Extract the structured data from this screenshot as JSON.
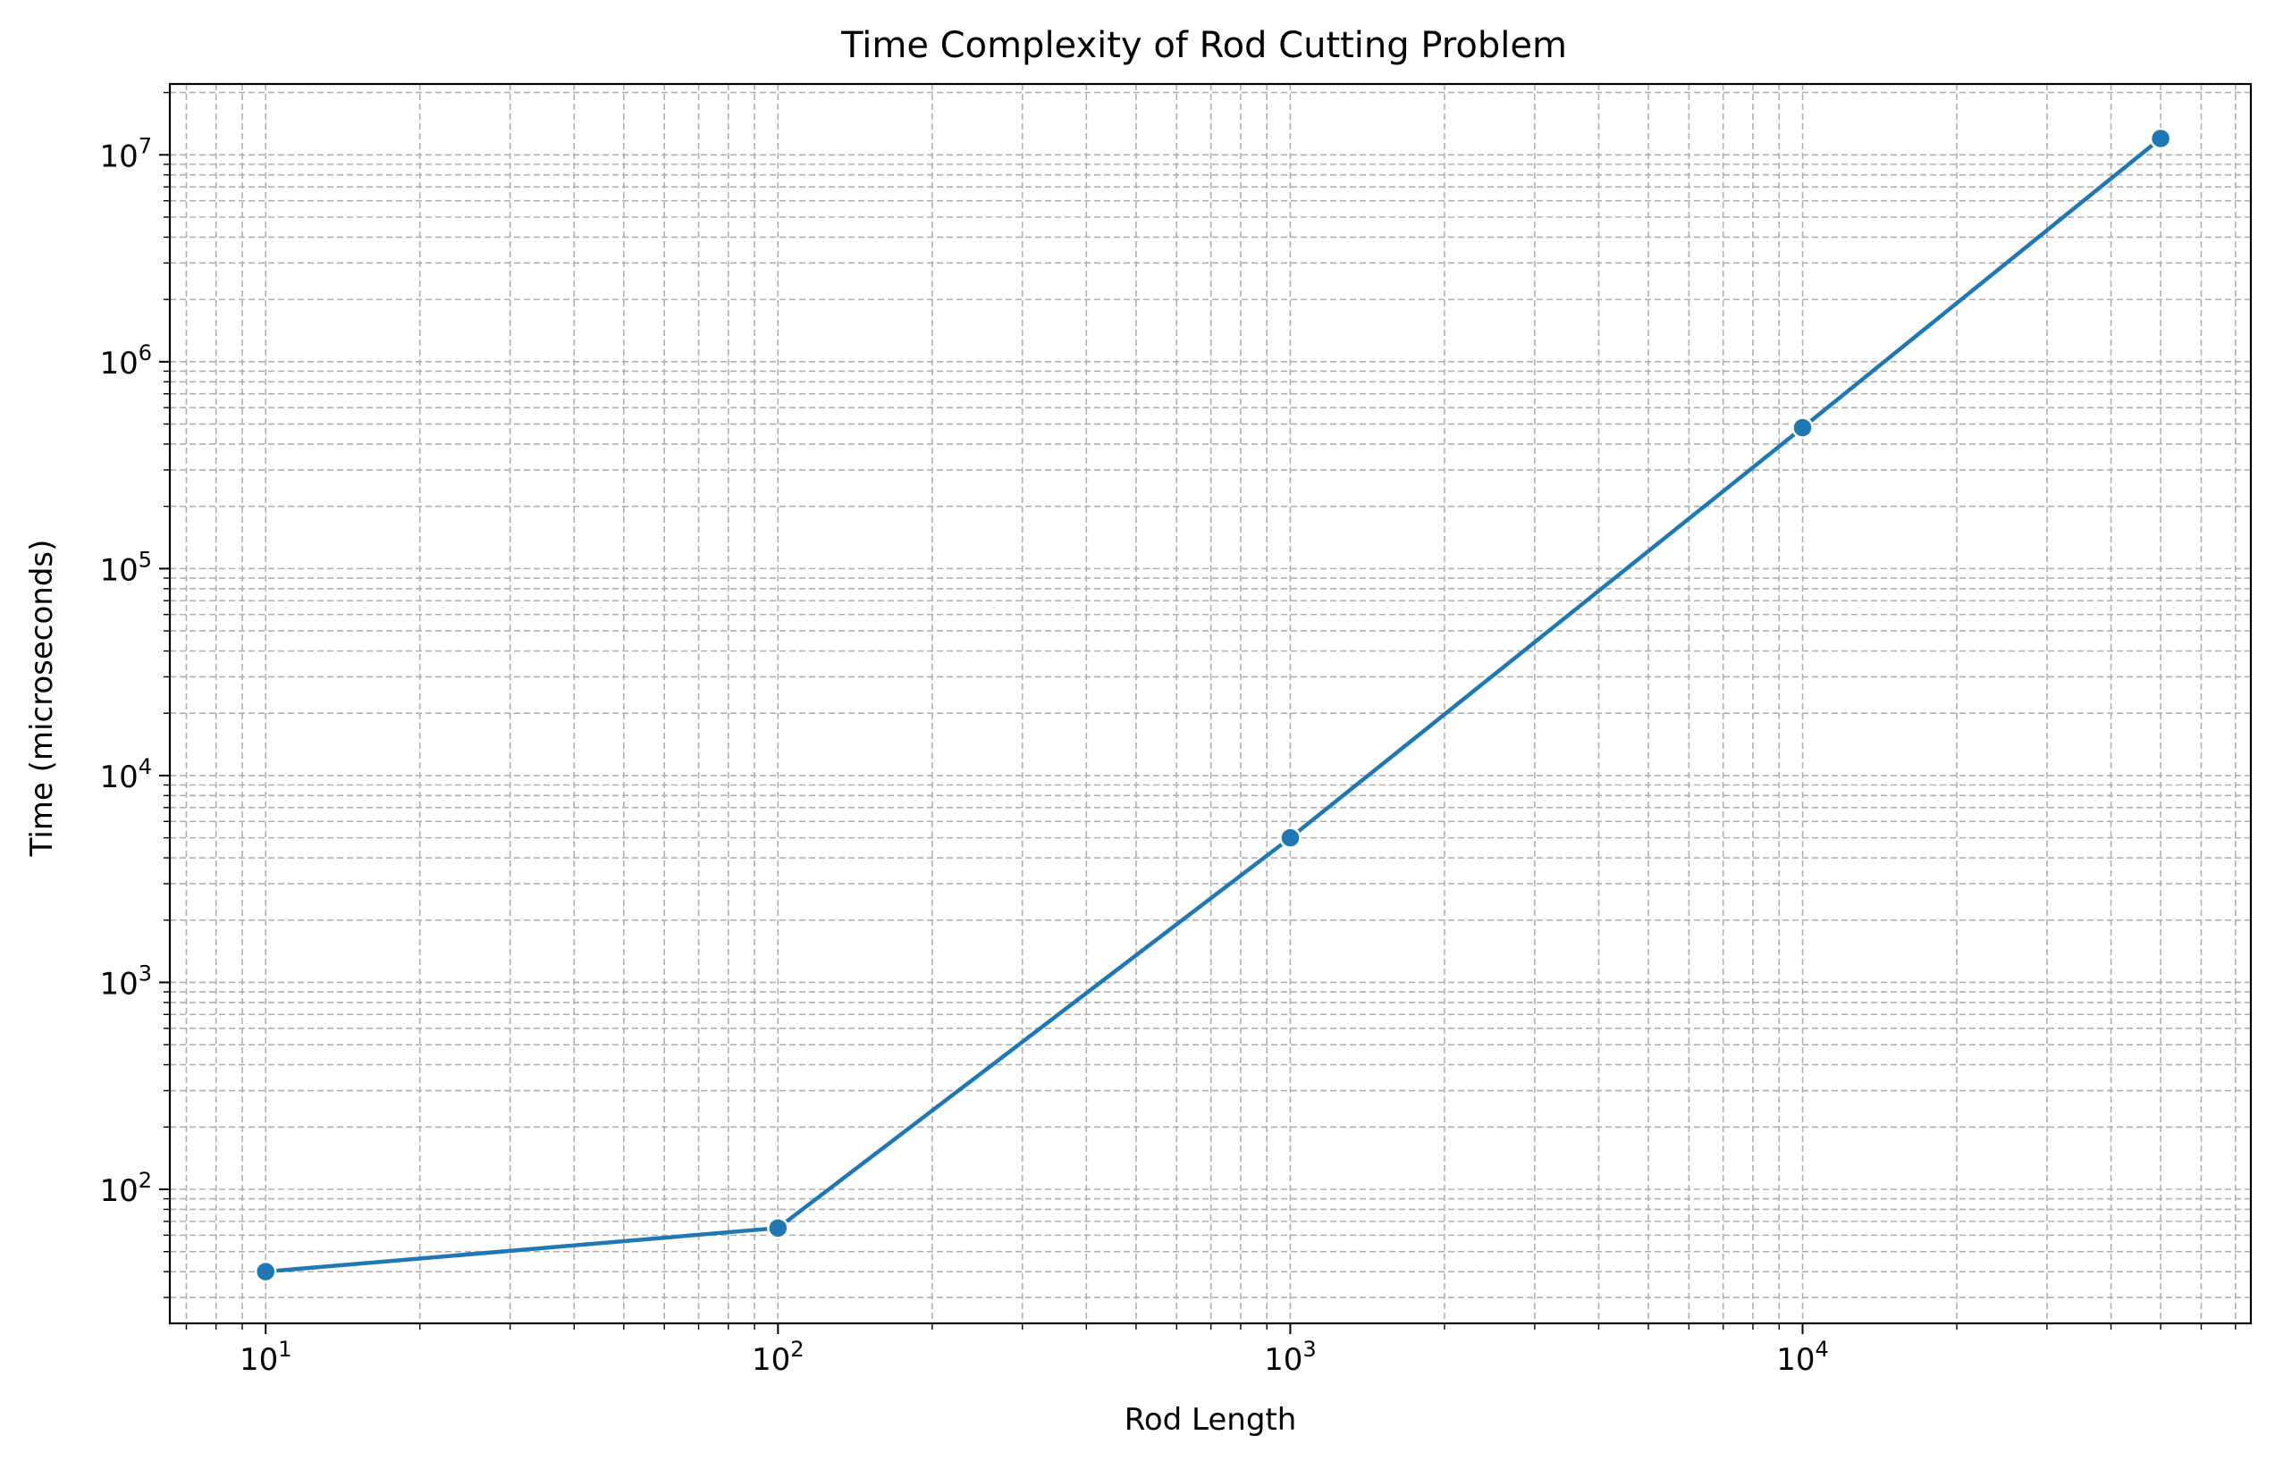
{
  "chart_data": {
    "type": "line",
    "title": "Time Complexity of Rod Cutting Problem",
    "xlabel": "Rod Length",
    "ylabel": "Time (microseconds)",
    "xscale": "log",
    "yscale": "log",
    "xlim": [
      6.5,
      75000
    ],
    "ylim": [
      22.5,
      22000000
    ],
    "grid": true,
    "grid_style": "dashed, major and minor",
    "x_ticks": [
      {
        "base": "10",
        "exp": "1",
        "value": 10
      },
      {
        "base": "10",
        "exp": "2",
        "value": 100
      },
      {
        "base": "10",
        "exp": "3",
        "value": 1000
      },
      {
        "base": "10",
        "exp": "4",
        "value": 10000
      }
    ],
    "y_ticks": [
      {
        "base": "10",
        "exp": "2",
        "value": 100
      },
      {
        "base": "10",
        "exp": "3",
        "value": 1000
      },
      {
        "base": "10",
        "exp": "4",
        "value": 10000
      },
      {
        "base": "10",
        "exp": "5",
        "value": 100000
      },
      {
        "base": "10",
        "exp": "6",
        "value": 1000000
      },
      {
        "base": "10",
        "exp": "7",
        "value": 10000000
      }
    ],
    "series": [
      {
        "color": "#1f77b4",
        "marker": "circle",
        "x": [
          10,
          100,
          1000,
          10000,
          50000
        ],
        "y": [
          40,
          65,
          5000,
          480000,
          12000000
        ]
      }
    ]
  }
}
